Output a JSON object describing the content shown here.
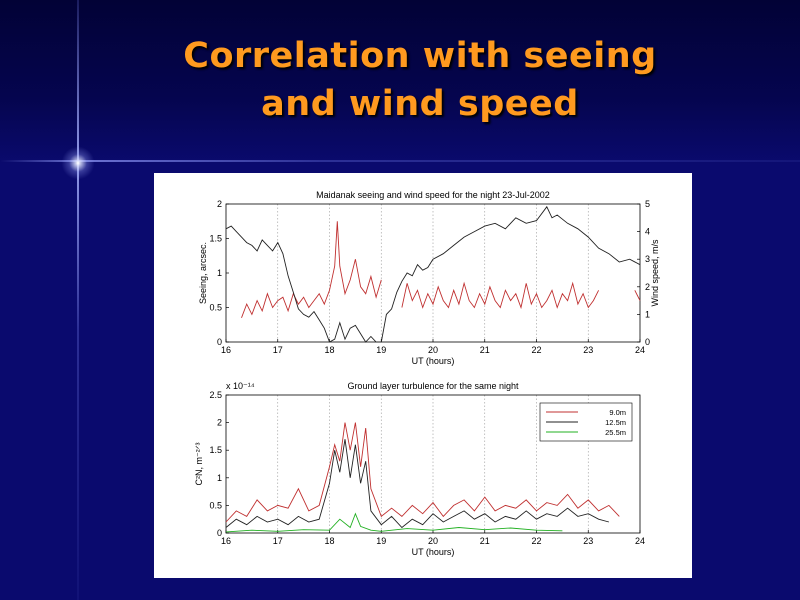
{
  "slide": {
    "title_line1": "Correlation with seeing",
    "title_line2": "and wind speed",
    "colors": {
      "title": "#ff9a1f",
      "background": "#0a0a6e"
    }
  },
  "chart_data": [
    {
      "type": "line",
      "title": "Maidanak seeing and wind speed for the night 23-Jul-2002",
      "xlabel": "UT (hours)",
      "ylabel_left": "Seeing, arcsec.",
      "ylabel_right": "Wind speed, m/s",
      "xlim": [
        16,
        24
      ],
      "ylim_left": [
        0,
        2
      ],
      "ylim_right": [
        0,
        5
      ],
      "x_ticks": [
        "16",
        "17",
        "18",
        "19",
        "20",
        "21",
        "22",
        "23",
        "24"
      ],
      "y_ticks_left": [
        "0",
        "0.5",
        "1",
        "1.5",
        "2"
      ],
      "y_ticks_right": [
        "0",
        "1",
        "2",
        "3",
        "4",
        "5"
      ],
      "grid": "vertical dotted",
      "series": [
        {
          "axis": "left",
          "color": "#c03030",
          "x": [
            16.3,
            16.4,
            16.5,
            16.6,
            16.7,
            16.8,
            16.9,
            17.0,
            17.1,
            17.2,
            17.3,
            17.4,
            17.5,
            17.6,
            17.7,
            17.8,
            17.9,
            18.0,
            18.1,
            18.15,
            18.2,
            18.3,
            18.4,
            18.5,
            18.6,
            18.7,
            18.8,
            18.9,
            19.0
          ],
          "y": [
            0.35,
            0.55,
            0.4,
            0.6,
            0.45,
            0.7,
            0.5,
            0.6,
            0.65,
            0.45,
            0.7,
            0.55,
            0.65,
            0.5,
            0.6,
            0.7,
            0.55,
            0.75,
            1.1,
            1.75,
            1.1,
            0.7,
            0.9,
            1.2,
            0.8,
            0.7,
            0.95,
            0.65,
            0.9
          ]
        },
        {
          "axis": "left",
          "color": "#c03030",
          "x": [
            19.4,
            19.5,
            19.6,
            19.7,
            19.8,
            19.9,
            20.0,
            20.1,
            20.2,
            20.3,
            20.4,
            20.5,
            20.6,
            20.7,
            20.8,
            20.9,
            21.0,
            21.1,
            21.2,
            21.3,
            21.4,
            21.5,
            21.6,
            21.7,
            21.8,
            21.9,
            22.0,
            22.1,
            22.2,
            22.3,
            22.4,
            22.5,
            22.6,
            22.7,
            22.8,
            22.9,
            23.0,
            23.1,
            23.2
          ],
          "y": [
            0.5,
            0.85,
            0.6,
            0.75,
            0.5,
            0.7,
            0.55,
            0.8,
            0.6,
            0.5,
            0.75,
            0.55,
            0.85,
            0.6,
            0.5,
            0.7,
            0.55,
            0.8,
            0.6,
            0.5,
            0.75,
            0.6,
            0.7,
            0.5,
            0.85,
            0.55,
            0.7,
            0.5,
            0.6,
            0.75,
            0.5,
            0.7,
            0.6,
            0.85,
            0.55,
            0.7,
            0.5,
            0.6,
            0.75
          ]
        },
        {
          "axis": "left",
          "color": "#c03030",
          "x": [
            23.9,
            24.0
          ],
          "y": [
            0.75,
            0.6
          ]
        },
        {
          "axis": "right",
          "color": "#222222",
          "x": [
            16.0,
            16.1,
            16.2,
            16.3,
            16.4,
            16.5,
            16.6,
            16.7,
            16.8,
            16.9,
            17.0,
            17.1,
            17.2,
            17.3,
            17.4,
            17.5,
            17.6,
            17.7,
            17.8,
            17.9,
            18.0,
            18.1,
            18.2,
            18.3,
            18.4,
            18.5,
            18.6,
            18.7,
            18.8,
            18.9,
            19.0,
            19.1,
            19.2,
            19.3,
            19.4,
            19.5,
            19.6,
            19.7,
            19.8,
            19.9,
            20.0,
            20.2,
            20.4,
            20.6,
            20.8,
            21.0,
            21.2,
            21.4,
            21.6,
            21.8,
            22.0,
            22.2,
            22.3,
            22.4,
            22.6,
            22.8,
            23.0,
            23.2,
            23.4,
            23.6,
            23.8,
            24.0
          ],
          "y": [
            4.1,
            4.2,
            4.0,
            3.8,
            3.6,
            3.5,
            3.3,
            3.7,
            3.5,
            3.3,
            3.6,
            3.2,
            2.4,
            1.8,
            1.2,
            1.0,
            0.9,
            1.1,
            0.8,
            0.5,
            0.0,
            0.1,
            0.7,
            0.1,
            0.5,
            0.6,
            0.3,
            0.0,
            0.2,
            0.0,
            0.0,
            1.0,
            1.2,
            1.8,
            2.2,
            2.5,
            2.4,
            2.8,
            2.6,
            2.7,
            3.0,
            3.2,
            3.5,
            3.8,
            4.0,
            4.2,
            4.3,
            4.1,
            4.5,
            4.3,
            4.4,
            4.9,
            4.5,
            4.6,
            4.3,
            4.1,
            3.8,
            3.4,
            3.2,
            2.9,
            3.0,
            2.8
          ]
        }
      ]
    },
    {
      "type": "line",
      "title": "Ground layer turbulence for the same night",
      "xlabel": "UT (hours)",
      "ylabel": "C²N, m⁻²ᐟ³",
      "multiplier_label": "x 10⁻¹⁴",
      "xlim": [
        16,
        24
      ],
      "ylim": [
        0,
        2.5
      ],
      "x_ticks": [
        "16",
        "17",
        "18",
        "19",
        "20",
        "21",
        "22",
        "23",
        "24"
      ],
      "y_ticks": [
        "0",
        "0.5",
        "1",
        "1.5",
        "2",
        "2.5"
      ],
      "grid": "vertical dotted",
      "legend_position": "top-right",
      "series": [
        {
          "name": "9.0m",
          "color": "#c03030",
          "x": [
            16.0,
            16.2,
            16.4,
            16.6,
            16.8,
            17.0,
            17.2,
            17.4,
            17.6,
            17.8,
            18.0,
            18.1,
            18.2,
            18.3,
            18.4,
            18.5,
            18.6,
            18.7,
            18.8,
            19.0,
            19.2,
            19.4,
            19.6,
            19.8,
            20.0,
            20.2,
            20.4,
            20.6,
            20.8,
            21.0,
            21.2,
            21.4,
            21.6,
            21.8,
            22.0,
            22.2,
            22.4,
            22.6,
            22.8,
            23.0,
            23.2,
            23.4,
            23.6
          ],
          "y": [
            0.2,
            0.4,
            0.3,
            0.6,
            0.4,
            0.5,
            0.45,
            0.8,
            0.4,
            0.5,
            1.2,
            1.6,
            1.3,
            2.0,
            1.5,
            2.0,
            1.2,
            1.9,
            0.8,
            0.3,
            0.45,
            0.3,
            0.5,
            0.35,
            0.55,
            0.3,
            0.5,
            0.6,
            0.4,
            0.65,
            0.4,
            0.5,
            0.45,
            0.6,
            0.4,
            0.55,
            0.5,
            0.7,
            0.45,
            0.6,
            0.4,
            0.5,
            0.3
          ]
        },
        {
          "name": "12.5m",
          "color": "#222222",
          "x": [
            16.0,
            16.2,
            16.4,
            16.6,
            16.8,
            17.0,
            17.2,
            17.4,
            17.6,
            17.8,
            18.0,
            18.1,
            18.2,
            18.3,
            18.4,
            18.5,
            18.6,
            18.7,
            18.8,
            19.0,
            19.2,
            19.4,
            19.6,
            19.8,
            20.0,
            20.2,
            20.4,
            20.6,
            20.8,
            21.0,
            21.2,
            21.4,
            21.6,
            21.8,
            22.0,
            22.2,
            22.4,
            22.6,
            22.8,
            23.0,
            23.2,
            23.4
          ],
          "y": [
            0.1,
            0.25,
            0.15,
            0.3,
            0.2,
            0.25,
            0.15,
            0.3,
            0.2,
            0.25,
            0.9,
            1.5,
            1.1,
            1.7,
            1.0,
            1.6,
            0.9,
            1.3,
            0.4,
            0.15,
            0.3,
            0.1,
            0.25,
            0.15,
            0.35,
            0.2,
            0.3,
            0.4,
            0.25,
            0.35,
            0.2,
            0.3,
            0.25,
            0.4,
            0.25,
            0.35,
            0.3,
            0.45,
            0.3,
            0.35,
            0.25,
            0.2
          ]
        },
        {
          "name": "25.5m",
          "color": "#22b022",
          "x": [
            16.0,
            16.5,
            17.0,
            17.5,
            18.0,
            18.2,
            18.4,
            18.5,
            18.6,
            18.8,
            19.0,
            19.5,
            20.0,
            20.5,
            21.0,
            21.5,
            22.0,
            22.5
          ],
          "y": [
            0.02,
            0.05,
            0.03,
            0.06,
            0.05,
            0.25,
            0.1,
            0.35,
            0.12,
            0.05,
            0.03,
            0.08,
            0.05,
            0.1,
            0.06,
            0.09,
            0.05,
            0.04
          ]
        }
      ]
    }
  ]
}
